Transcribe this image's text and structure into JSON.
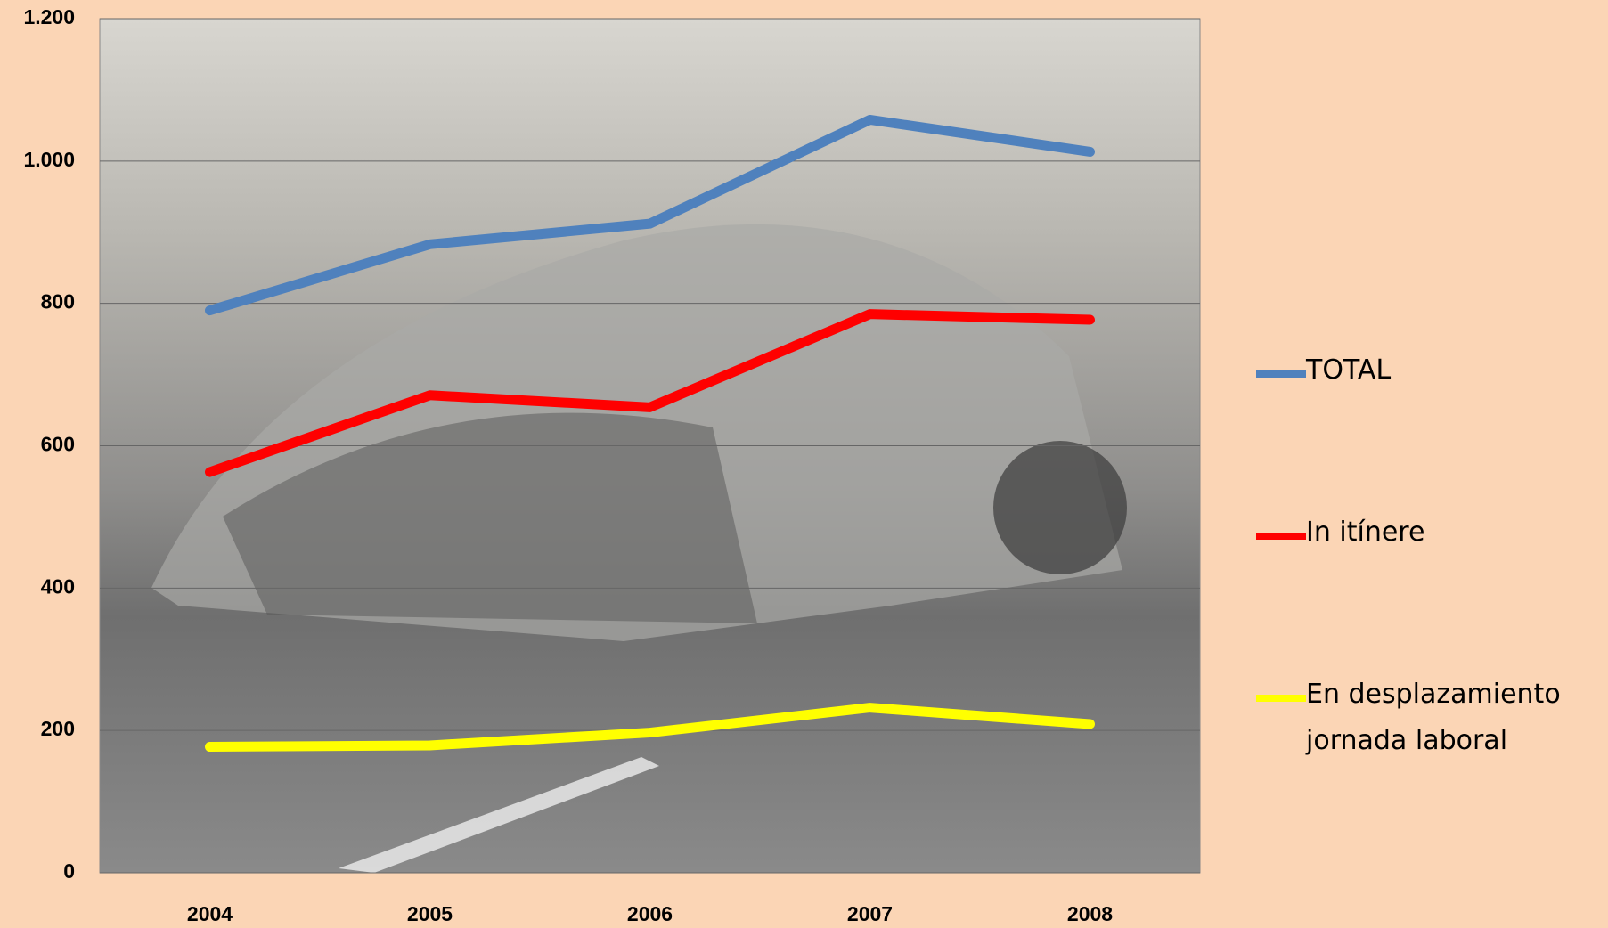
{
  "chart_data": {
    "type": "line",
    "categories": [
      "2004",
      "2005",
      "2006",
      "2007",
      "2008"
    ],
    "series": [
      {
        "name": "TOTAL",
        "color": "#4f81bd",
        "values": [
          790,
          883,
          912,
          1058,
          1013
        ]
      },
      {
        "name": "In itínere",
        "color": "#ff0000",
        "values": [
          563,
          671,
          654,
          785,
          777
        ]
      },
      {
        "name": "En desplazamiento jornada laboral",
        "color": "#ffff00",
        "values": [
          177,
          179,
          197,
          232,
          209
        ]
      }
    ],
    "ylim": [
      0,
      1200
    ],
    "yticks": [
      0,
      200,
      400,
      600,
      800,
      {
        "value": 1000,
        "label": "1.000"
      },
      {
        "value": 1200,
        "label": "1.200"
      }
    ],
    "grid": true,
    "legend": "right"
  }
}
